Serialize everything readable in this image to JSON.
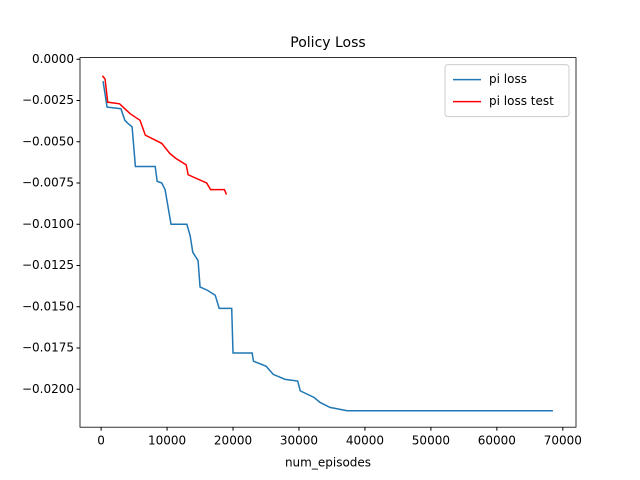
{
  "chart_data": {
    "type": "line",
    "title": "Policy Loss",
    "x_label": "num_episodes",
    "xlim": [
      -3200,
      72000
    ],
    "ylim": [
      -0.0223,
      0.0001
    ],
    "xticks": [
      0,
      10000,
      20000,
      30000,
      40000,
      50000,
      60000,
      70000
    ],
    "yticks": [
      {
        "value": 0,
        "label": "0.0000"
      },
      {
        "value": -0.0025,
        "label": "−0.0025"
      },
      {
        "value": -0.005,
        "label": "−0.0050"
      },
      {
        "value": -0.0075,
        "label": "−0.0075"
      },
      {
        "value": -0.01,
        "label": "−0.0100"
      },
      {
        "value": -0.0125,
        "label": "−0.0125"
      },
      {
        "value": -0.015,
        "label": "−0.0150"
      },
      {
        "value": -0.0175,
        "label": "−0.0175"
      },
      {
        "value": -0.02,
        "label": "−0.0200"
      }
    ],
    "legend": "upper right",
    "series": [
      {
        "name": "pi loss",
        "color": "#1f77b4",
        "x": [
          300,
          900,
          3000,
          3600,
          4100,
          4700,
          5200,
          8200,
          8500,
          9200,
          9700,
          10600,
          13000,
          13500,
          13900,
          14700,
          15000,
          16100,
          17300,
          17900,
          19800,
          20000,
          22900,
          23100,
          25000,
          26100,
          27900,
          29800,
          30200,
          32300,
          33200,
          34700,
          37300,
          68500
        ],
        "values": [
          -0.00133,
          -0.0029,
          -0.003,
          -0.0037,
          -0.0039,
          -0.0041,
          -0.0065,
          -0.0065,
          -0.0074,
          -0.0075,
          -0.0079,
          -0.01,
          -0.01,
          -0.0107,
          -0.0117,
          -0.0122,
          -0.0138,
          -0.014,
          -0.0143,
          -0.0151,
          -0.0151,
          -0.0178,
          -0.0178,
          -0.0183,
          -0.0186,
          -0.0191,
          -0.0194,
          -0.0195,
          -0.0201,
          -0.0205,
          -0.0208,
          -0.0211,
          -0.0213,
          -0.0213
        ]
      },
      {
        "name": "pi loss test",
        "color": "#ff0000",
        "x": [
          200,
          600,
          1000,
          2800,
          4400,
          5900,
          6700,
          9200,
          10400,
          11300,
          12900,
          13200,
          16000,
          16600,
          18700,
          19000
        ],
        "values": [
          -0.001,
          -0.0012,
          -0.0026,
          -0.0027,
          -0.0033,
          -0.0037,
          -0.0046,
          -0.0051,
          -0.0057,
          -0.006,
          -0.0064,
          -0.007,
          -0.0075,
          -0.0079,
          -0.0079,
          -0.0082
        ]
      }
    ]
  }
}
